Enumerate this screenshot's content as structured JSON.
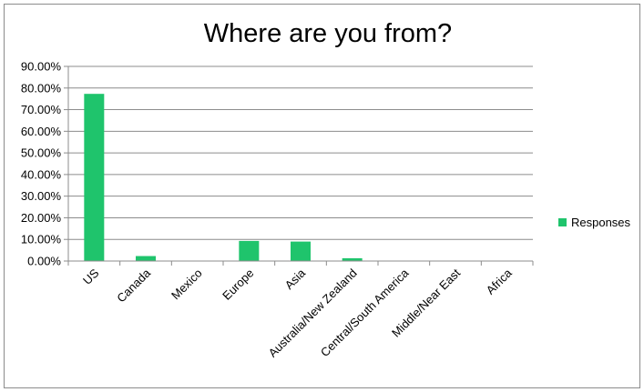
{
  "chart_data": {
    "type": "bar",
    "title": "Where are you from?",
    "categories": [
      "US",
      "Canada",
      "Mexico",
      "Europe",
      "Asia",
      "Australia/New Zealand",
      "Central/South America",
      "Middle/Near East",
      "Africa"
    ],
    "series": [
      {
        "name": "Responses",
        "values": [
          77.3,
          2.3,
          0,
          9.3,
          9.0,
          1.3,
          0,
          0,
          0
        ],
        "color": "#1fc46c"
      }
    ],
    "ylim": [
      0,
      90
    ],
    "yticks": [
      "0.00%",
      "10.00%",
      "20.00%",
      "30.00%",
      "40.00%",
      "50.00%",
      "60.00%",
      "70.00%",
      "80.00%",
      "90.00%"
    ],
    "grid": true,
    "legend": "right"
  }
}
